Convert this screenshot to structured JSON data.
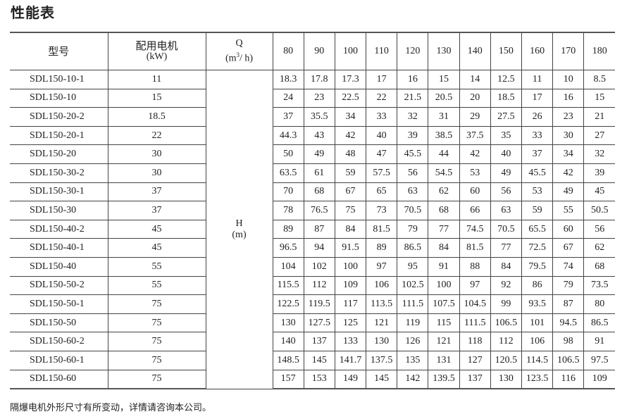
{
  "title": "性能表",
  "table": {
    "header": {
      "model": "型号",
      "motor_line1": "配用电机",
      "motor_line2": "(kW)",
      "q_label": "Q",
      "q_unit_prefix": "(m",
      "q_unit_sup": "3",
      "q_unit_suffix": "/ h)",
      "h_label": "H",
      "h_unit": "(m)",
      "flows": [
        "80",
        "90",
        "100",
        "110",
        "120",
        "130",
        "140",
        "150",
        "160",
        "170",
        "180"
      ]
    },
    "rows": [
      {
        "model": "SDL150-10-1",
        "kw": "11",
        "h": [
          "18.3",
          "17.8",
          "17.3",
          "17",
          "16",
          "15",
          "14",
          "12.5",
          "11",
          "10",
          "8.5"
        ]
      },
      {
        "model": "SDL150-10",
        "kw": "15",
        "h": [
          "24",
          "23",
          "22.5",
          "22",
          "21.5",
          "20.5",
          "20",
          "18.5",
          "17",
          "16",
          "15"
        ]
      },
      {
        "model": "SDL150-20-2",
        "kw": "18.5",
        "h": [
          "37",
          "35.5",
          "34",
          "33",
          "32",
          "31",
          "29",
          "27.5",
          "26",
          "23",
          "21"
        ]
      },
      {
        "model": "SDL150-20-1",
        "kw": "22",
        "h": [
          "44.3",
          "43",
          "42",
          "40",
          "39",
          "38.5",
          "37.5",
          "35",
          "33",
          "30",
          "27"
        ]
      },
      {
        "model": "SDL150-20",
        "kw": "30",
        "h": [
          "50",
          "49",
          "48",
          "47",
          "45.5",
          "44",
          "42",
          "40",
          "37",
          "34",
          "32"
        ]
      },
      {
        "model": "SDL150-30-2",
        "kw": "30",
        "h": [
          "63.5",
          "61",
          "59",
          "57.5",
          "56",
          "54.5",
          "53",
          "49",
          "45.5",
          "42",
          "39"
        ]
      },
      {
        "model": "SDL150-30-1",
        "kw": "37",
        "h": [
          "70",
          "68",
          "67",
          "65",
          "63",
          "62",
          "60",
          "56",
          "53",
          "49",
          "45"
        ]
      },
      {
        "model": "SDL150-30",
        "kw": "37",
        "h": [
          "78",
          "76.5",
          "75",
          "73",
          "70.5",
          "68",
          "66",
          "63",
          "59",
          "55",
          "50.5"
        ]
      },
      {
        "model": "SDL150-40-2",
        "kw": "45",
        "h": [
          "89",
          "87",
          "84",
          "81.5",
          "79",
          "77",
          "74.5",
          "70.5",
          "65.5",
          "60",
          "56"
        ]
      },
      {
        "model": "SDL150-40-1",
        "kw": "45",
        "h": [
          "96.5",
          "94",
          "91.5",
          "89",
          "86.5",
          "84",
          "81.5",
          "77",
          "72.5",
          "67",
          "62"
        ]
      },
      {
        "model": "SDL150-40",
        "kw": "55",
        "h": [
          "104",
          "102",
          "100",
          "97",
          "95",
          "91",
          "88",
          "84",
          "79.5",
          "74",
          "68"
        ]
      },
      {
        "model": "SDL150-50-2",
        "kw": "55",
        "h": [
          "115.5",
          "112",
          "109",
          "106",
          "102.5",
          "100",
          "97",
          "92",
          "86",
          "79",
          "73.5"
        ]
      },
      {
        "model": "SDL150-50-1",
        "kw": "75",
        "h": [
          "122.5",
          "119.5",
          "117",
          "113.5",
          "111.5",
          "107.5",
          "104.5",
          "99",
          "93.5",
          "87",
          "80"
        ]
      },
      {
        "model": "SDL150-50",
        "kw": "75",
        "h": [
          "130",
          "127.5",
          "125",
          "121",
          "119",
          "115",
          "111.5",
          "106.5",
          "101",
          "94.5",
          "86.5"
        ]
      },
      {
        "model": "SDL150-60-2",
        "kw": "75",
        "h": [
          "140",
          "137",
          "133",
          "130",
          "126",
          "121",
          "118",
          "112",
          "106",
          "98",
          "91"
        ]
      },
      {
        "model": "SDL150-60-1",
        "kw": "75",
        "h": [
          "148.5",
          "145",
          "141.7",
          "137.5",
          "135",
          "131",
          "127",
          "120.5",
          "114.5",
          "106.5",
          "97.5"
        ]
      },
      {
        "model": "SDL150-60",
        "kw": "75",
        "h": [
          "157",
          "153",
          "149",
          "145",
          "142",
          "139.5",
          "137",
          "130",
          "123.5",
          "116",
          "109"
        ]
      }
    ]
  },
  "footnote": "隔爆电机外形尺寸有所变动，详情请咨询本公司。"
}
